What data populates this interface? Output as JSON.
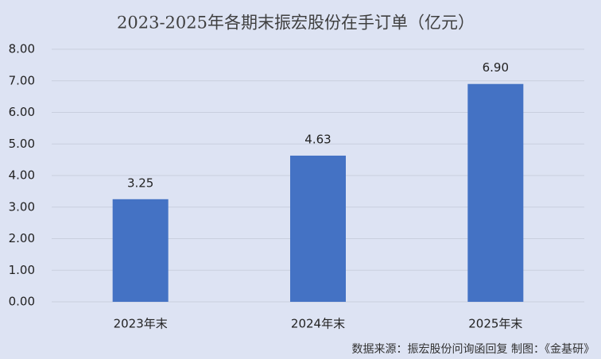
{
  "chart_data": {
    "type": "bar",
    "title": "2023-2025年各期末振宏股份在手订单（亿元）",
    "categories": [
      "2023年末",
      "2024年末",
      "2025年末"
    ],
    "values": [
      3.25,
      4.63,
      6.9
    ],
    "value_labels": [
      "3.25",
      "4.63",
      "6.90"
    ],
    "color": "#4472c4",
    "ylim": [
      0,
      8
    ],
    "yticks": [
      {
        "value": 0,
        "label": "0.00"
      },
      {
        "value": 1,
        "label": "1.00"
      },
      {
        "value": 2,
        "label": "2.00"
      },
      {
        "value": 3,
        "label": "3.00"
      },
      {
        "value": 4,
        "label": "4.00"
      },
      {
        "value": 5,
        "label": "5.00"
      },
      {
        "value": 6,
        "label": "6.00"
      },
      {
        "value": 7,
        "label": "7.00"
      },
      {
        "value": 8,
        "label": "8.00"
      }
    ],
    "grid": true,
    "source": "数据来源：振宏股份问询函回复    制图：《金基研》"
  }
}
